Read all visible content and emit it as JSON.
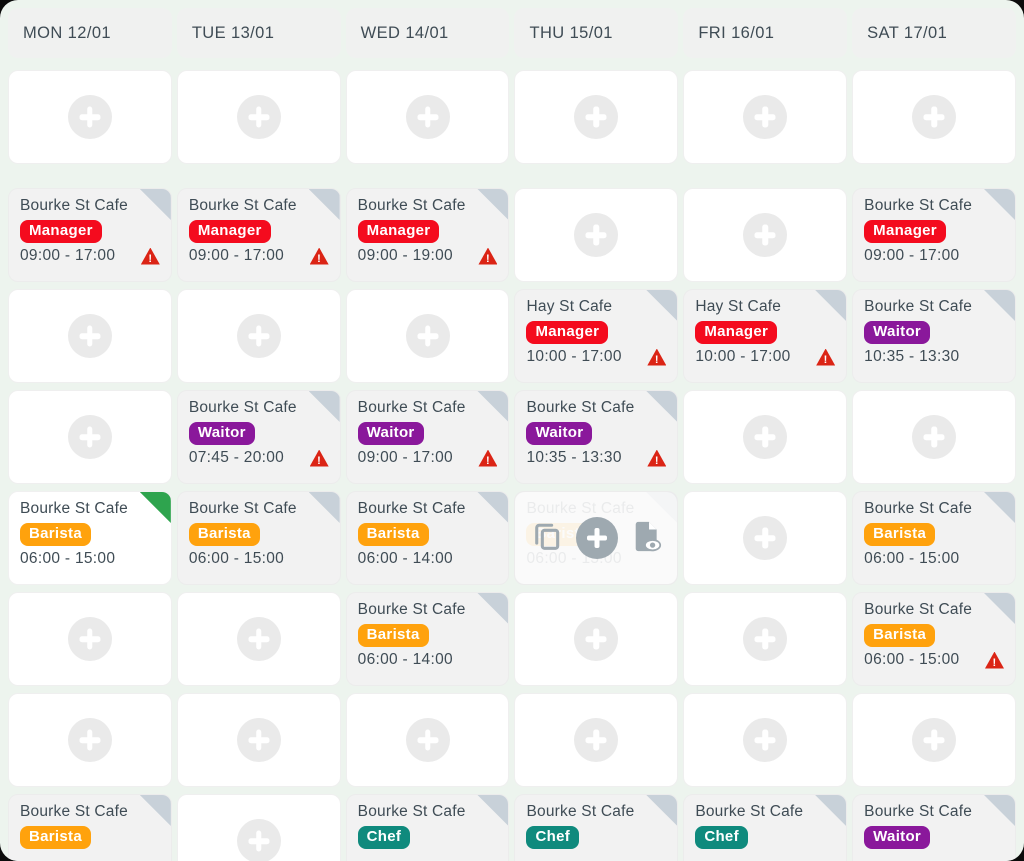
{
  "days": [
    "MON 12/01",
    "TUE 13/01",
    "WED 14/01",
    "THU 15/01",
    "FRI 16/01",
    "SAT 17/01"
  ],
  "role_colors": {
    "Manager": "#F40B1E",
    "Waitor": "#8A189B",
    "Barista": "#FFA20D",
    "Chef": "#0F8A7D"
  },
  "colors": {
    "page_bg": "#EDF4EE",
    "header_bg": "#F0F1F0",
    "card_bg": "#F2F2F2",
    "title_color": "#3F4C55",
    "fold_gray": "#C8D1D9",
    "fold_green": "#2EA44E",
    "warning_red": "#DB2415",
    "add_circle": "#EAEAEA",
    "hover_icon": "#9EA9B0"
  },
  "icons": {
    "add": "plus-icon",
    "copy": "copy-icon",
    "preview": "document-eye-icon",
    "warning": "warning-triangle-icon",
    "fold": "folded-corner-icon"
  },
  "rows": [
    [
      {
        "type": "add"
      },
      {
        "type": "add"
      },
      {
        "type": "add"
      },
      {
        "type": "add"
      },
      {
        "type": "add"
      },
      {
        "type": "add"
      }
    ],
    [
      {
        "type": "shift",
        "location": "Bourke St Cafe",
        "role": "Manager",
        "time": "09:00 - 17:00",
        "warning": true
      },
      {
        "type": "shift",
        "location": "Bourke St Cafe",
        "role": "Manager",
        "time": "09:00 - 17:00",
        "warning": true
      },
      {
        "type": "shift",
        "location": "Bourke St Cafe",
        "role": "Manager",
        "time": "09:00 - 19:00",
        "warning": true
      },
      {
        "type": "add"
      },
      {
        "type": "add"
      },
      {
        "type": "shift",
        "location": "Bourke St Cafe",
        "role": "Manager",
        "time": "09:00 - 17:00",
        "warning": false
      }
    ],
    [
      {
        "type": "add"
      },
      {
        "type": "add"
      },
      {
        "type": "add"
      },
      {
        "type": "shift",
        "location": "Hay St Cafe",
        "role": "Manager",
        "time": "10:00 - 17:00",
        "warning": true
      },
      {
        "type": "shift",
        "location": "Hay St Cafe",
        "role": "Manager",
        "time": "10:00 - 17:00",
        "warning": true
      },
      {
        "type": "shift",
        "location": "Bourke St Cafe",
        "role": "Waitor",
        "time": "10:35 - 13:30",
        "warning": false
      }
    ],
    [
      {
        "type": "add"
      },
      {
        "type": "shift",
        "location": "Bourke St Cafe",
        "role": "Waitor",
        "time": "07:45 - 20:00",
        "warning": true
      },
      {
        "type": "shift",
        "location": "Bourke St Cafe",
        "role": "Waitor",
        "time": "09:00 - 17:00",
        "warning": true
      },
      {
        "type": "shift",
        "location": "Bourke St Cafe",
        "role": "Waitor",
        "time": "10:35 - 13:30",
        "warning": true
      },
      {
        "type": "add"
      },
      {
        "type": "add"
      }
    ],
    [
      {
        "type": "shift",
        "location": "Bourke St Cafe",
        "role": "Barista",
        "time": "06:00 - 15:00",
        "warning": false,
        "fold": "green",
        "white": true
      },
      {
        "type": "shift",
        "location": "Bourke St Cafe",
        "role": "Barista",
        "time": "06:00 - 15:00",
        "warning": false
      },
      {
        "type": "shift",
        "location": "Bourke St Cafe",
        "role": "Barista",
        "time": "06:00 - 14:00",
        "warning": false
      },
      {
        "type": "shift",
        "location": "Bourke St Cafe",
        "role": "Barista",
        "time": "06:00 - 15:00",
        "warning": false,
        "hover": true
      },
      {
        "type": "add"
      },
      {
        "type": "shift",
        "location": "Bourke St Cafe",
        "role": "Barista",
        "time": "06:00 - 15:00",
        "warning": false
      }
    ],
    [
      {
        "type": "add"
      },
      {
        "type": "add"
      },
      {
        "type": "shift",
        "location": "Bourke St Cafe",
        "role": "Barista",
        "time": "06:00 - 14:00",
        "warning": false
      },
      {
        "type": "add"
      },
      {
        "type": "add"
      },
      {
        "type": "shift",
        "location": "Bourke St Cafe",
        "role": "Barista",
        "time": "06:00 - 15:00",
        "warning": true
      }
    ],
    [
      {
        "type": "add"
      },
      {
        "type": "add"
      },
      {
        "type": "add"
      },
      {
        "type": "add"
      },
      {
        "type": "add"
      },
      {
        "type": "add"
      }
    ],
    [
      {
        "type": "shift",
        "location": "Bourke St Cafe",
        "role": "Barista",
        "time": "",
        "warning": false
      },
      {
        "type": "add"
      },
      {
        "type": "shift",
        "location": "Bourke St Cafe",
        "role": "Chef",
        "time": "",
        "warning": false
      },
      {
        "type": "shift",
        "location": "Bourke St Cafe",
        "role": "Chef",
        "time": "",
        "warning": false
      },
      {
        "type": "shift",
        "location": "Bourke St Cafe",
        "role": "Chef",
        "time": "",
        "warning": false
      },
      {
        "type": "shift",
        "location": "Bourke St Cafe",
        "role": "Waitor",
        "time": "",
        "warning": false
      }
    ]
  ]
}
